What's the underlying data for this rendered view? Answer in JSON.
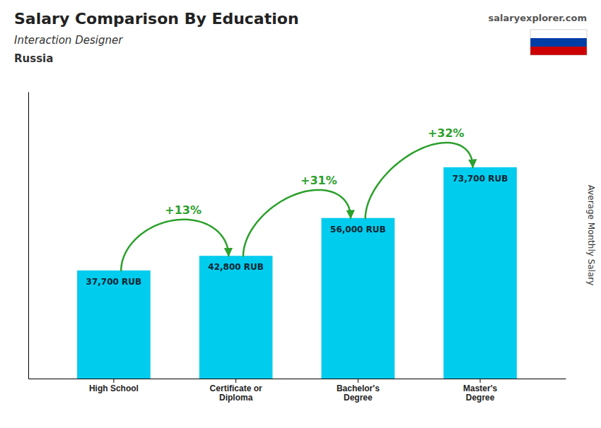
{
  "chart_data": {
    "type": "bar",
    "title": "Salary Comparison By Education",
    "subtitle": "Interaction Designer",
    "annotations": [
      "Russia",
      "salaryexplorer.com"
    ],
    "ylabel": "Average Monthly Salary",
    "categories": [
      "High School",
      "Certificate or\nDiploma",
      "Bachelor's\nDegree",
      "Master's\nDegree"
    ],
    "values": [
      37700,
      42800,
      56000,
      73700
    ],
    "value_labels": [
      "37,700 RUB",
      "42,800 RUB",
      "56,000 RUB",
      "73,700 RUB"
    ],
    "data_labels": true,
    "changes": [
      {
        "value": 13,
        "label": "+13%"
      },
      {
        "value": 31,
        "label": "+31%"
      },
      {
        "value": 32,
        "label": "+32%"
      }
    ],
    "color": "#00CCEE",
    "ylim": [
      0,
      100000
    ],
    "tick_labels": "x",
    "grid": false
  }
}
